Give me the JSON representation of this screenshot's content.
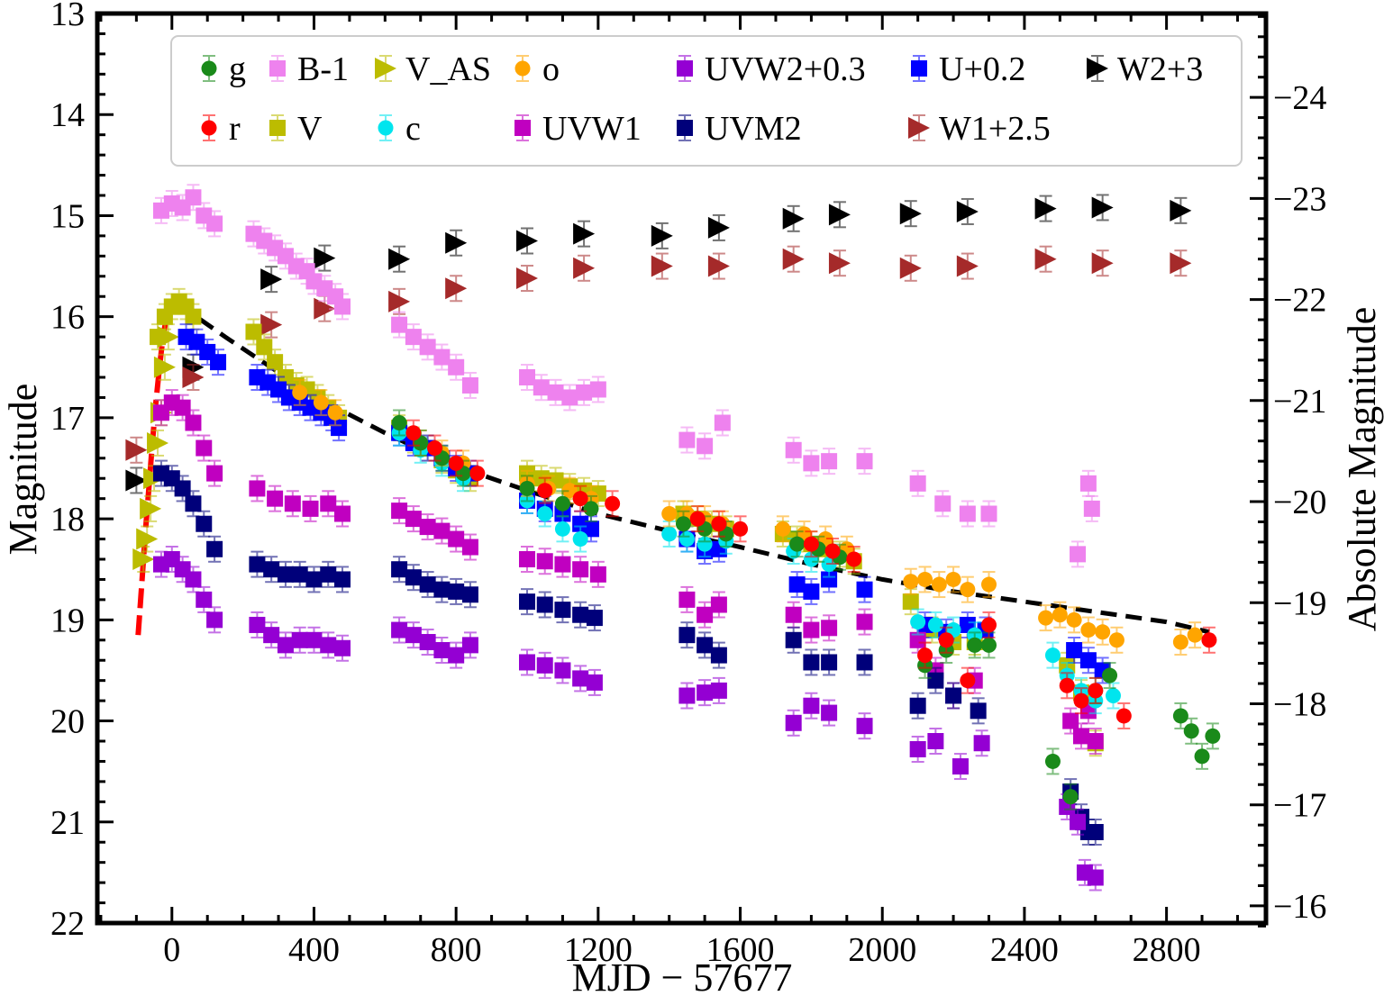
{
  "chart_data": {
    "type": "scatter",
    "xlabel": "MJD − 57677",
    "ylabel": "Magnitude",
    "y2label": "Absolute  Magnitude",
    "xlim": [
      -210,
      3080
    ],
    "ylim": [
      22,
      13
    ],
    "y2lim": [
      -15.83,
      -24.83
    ],
    "y_inverted": true,
    "grid": false,
    "legend_position": "top",
    "xticks": [
      0,
      400,
      800,
      1200,
      1600,
      2000,
      2400,
      2800
    ],
    "xtick_labels": [
      "0",
      "400",
      "800",
      "1200",
      "1600",
      "2000",
      "2400",
      "2800"
    ],
    "yticks": [
      13,
      14,
      15,
      16,
      17,
      18,
      19,
      20,
      21,
      22
    ],
    "ytick_labels": [
      "13",
      "14",
      "15",
      "16",
      "17",
      "18",
      "19",
      "20",
      "21",
      "22"
    ],
    "y2ticks": [
      -24,
      -23,
      -22,
      -21,
      -20,
      -19,
      -18,
      -17,
      -16
    ],
    "y2tick_labels": [
      "−24",
      "−23",
      "−22",
      "−21",
      "−20",
      "−19",
      "−18",
      "−17",
      "−16"
    ],
    "legend": [
      {
        "label": "g",
        "color": "#1a8a1a",
        "marker": "circle"
      },
      {
        "label": "B-1",
        "color": "#ee82ee",
        "marker": "square"
      },
      {
        "label": "V_AS",
        "color": "#bcbc00",
        "marker": "triangle-right"
      },
      {
        "label": "o",
        "color": "#ffa500",
        "marker": "circle"
      },
      {
        "label": "UVW2+0.3",
        "color": "#9400d3",
        "marker": "square"
      },
      {
        "label": "U+0.2",
        "color": "#0000ff",
        "marker": "square"
      },
      {
        "label": "W2+3",
        "color": "#000000",
        "marker": "triangle-right"
      },
      {
        "label": "r",
        "color": "#ff0000",
        "marker": "circle"
      },
      {
        "label": "V",
        "color": "#bcbc00",
        "marker": "square"
      },
      {
        "label": "c",
        "color": "#00e5ee",
        "marker": "circle"
      },
      {
        "label": "UVW1",
        "color": "#c000c0",
        "marker": "square"
      },
      {
        "label": "UVM2",
        "color": "#00007a",
        "marker": "square"
      },
      {
        "label": "W1+2.5",
        "color": "#a52a2a",
        "marker": "triangle-right"
      }
    ],
    "series": [
      {
        "name": "W2+3",
        "color": "#000000",
        "marker": "triangle-right",
        "x": [
          -100,
          60,
          280,
          430,
          640,
          800,
          1000,
          1160,
          1380,
          1540,
          1750,
          1880,
          2080,
          2240,
          2460,
          2620,
          2840
        ],
        "y": [
          17.62,
          16.5,
          15.63,
          15.42,
          15.43,
          15.27,
          15.25,
          15.18,
          15.2,
          15.12,
          15.03,
          14.99,
          14.98,
          14.96,
          14.93,
          14.92,
          14.95
        ]
      },
      {
        "name": "W1+2.5",
        "color": "#a52a2a",
        "marker": "triangle-right",
        "x": [
          -100,
          60,
          280,
          430,
          640,
          800,
          1000,
          1160,
          1380,
          1540,
          1750,
          1880,
          2080,
          2240,
          2460,
          2620,
          2840
        ],
        "y": [
          17.32,
          16.6,
          16.08,
          15.92,
          15.85,
          15.72,
          15.62,
          15.52,
          15.5,
          15.5,
          15.43,
          15.47,
          15.52,
          15.5,
          15.43,
          15.47,
          15.47
        ]
      },
      {
        "name": "B-1",
        "color": "#ee82ee",
        "marker": "square",
        "x": [
          -30,
          0,
          30,
          60,
          90,
          120,
          230,
          260,
          290,
          320,
          350,
          380,
          400,
          430,
          460,
          480,
          640,
          680,
          720,
          760,
          800,
          840,
          1000,
          1040,
          1080,
          1120,
          1160,
          1200,
          1450,
          1500,
          1550,
          1750,
          1800,
          1850,
          1950,
          2100,
          2170,
          2240,
          2300,
          2550,
          2580,
          2590
        ],
        "y": [
          14.95,
          14.88,
          14.92,
          14.82,
          15.0,
          15.08,
          15.18,
          15.25,
          15.32,
          15.4,
          15.5,
          15.55,
          15.65,
          15.72,
          15.8,
          15.9,
          16.08,
          16.2,
          16.3,
          16.4,
          16.5,
          16.68,
          16.6,
          16.7,
          16.75,
          16.8,
          16.75,
          16.72,
          17.22,
          17.28,
          17.05,
          17.32,
          17.45,
          17.43,
          17.43,
          17.65,
          17.85,
          17.95,
          17.95,
          18.35,
          17.65,
          17.9
        ]
      },
      {
        "name": "V_AS",
        "color": "#bcbc00",
        "marker": "triangle-right",
        "x": [
          -80,
          -70,
          -60,
          -50,
          -40,
          -30,
          -20,
          -10
        ],
        "y": [
          18.4,
          18.2,
          17.9,
          17.6,
          17.25,
          16.95,
          16.5,
          16.2
        ]
      },
      {
        "name": "V",
        "color": "#bcbc00",
        "marker": "square",
        "x": [
          -40,
          -20,
          0,
          20,
          40,
          60,
          230,
          260,
          290,
          320,
          350,
          380,
          410,
          440,
          470,
          640,
          680,
          720,
          760,
          800,
          840,
          1000,
          1040,
          1080,
          1120,
          1160,
          1200,
          1440,
          1480,
          1520,
          1560,
          1720,
          1760,
          1800,
          1840,
          1880,
          1920,
          2080,
          2140,
          2200,
          2260,
          2520,
          2560,
          2600
        ],
        "y": [
          16.2,
          16.0,
          15.9,
          15.85,
          15.9,
          16.0,
          16.15,
          16.3,
          16.45,
          16.6,
          16.68,
          16.72,
          16.8,
          16.9,
          17.0,
          17.1,
          17.22,
          17.3,
          17.42,
          17.52,
          17.6,
          17.55,
          17.6,
          17.62,
          17.68,
          17.72,
          17.75,
          17.95,
          18.0,
          18.05,
          18.1,
          18.15,
          18.2,
          18.25,
          18.3,
          18.35,
          18.42,
          18.82,
          19.1,
          19.22,
          19.22,
          19.45,
          19.72,
          20.22
        ]
      },
      {
        "name": "U+0.2",
        "color": "#0000ff",
        "marker": "square",
        "x": [
          40,
          70,
          100,
          130,
          240,
          270,
          300,
          330,
          360,
          390,
          420,
          450,
          470,
          640,
          680,
          720,
          760,
          800,
          840,
          1000,
          1050,
          1100,
          1150,
          1180,
          1450,
          1500,
          1540,
          1760,
          1800,
          1850,
          1950,
          2120,
          2180,
          2240,
          2290,
          2540,
          2580,
          2620
        ],
        "y": [
          16.2,
          16.25,
          16.35,
          16.45,
          16.6,
          16.65,
          16.72,
          16.8,
          16.85,
          16.9,
          16.95,
          17.0,
          17.1,
          17.15,
          17.25,
          17.3,
          17.4,
          17.5,
          17.55,
          17.82,
          17.9,
          17.95,
          18.05,
          18.1,
          18.2,
          18.32,
          18.3,
          18.65,
          18.72,
          18.6,
          18.7,
          19.05,
          19.12,
          19.05,
          19.1,
          19.3,
          19.4,
          19.5
        ]
      },
      {
        "name": "UVW1",
        "color": "#c000c0",
        "marker": "square",
        "x": [
          -30,
          0,
          30,
          60,
          90,
          120,
          240,
          290,
          340,
          390,
          440,
          480,
          640,
          680,
          720,
          760,
          800,
          840,
          1000,
          1050,
          1100,
          1150,
          1200,
          1450,
          1500,
          1540,
          1750,
          1800,
          1850,
          1950,
          2100,
          2150,
          2200,
          2260,
          2530,
          2560,
          2580,
          2600
        ],
        "y": [
          16.95,
          16.85,
          16.9,
          17.05,
          17.3,
          17.55,
          17.7,
          17.8,
          17.85,
          17.9,
          17.85,
          17.95,
          17.92,
          18.0,
          18.08,
          18.12,
          18.2,
          18.28,
          18.4,
          18.42,
          18.45,
          18.5,
          18.55,
          18.8,
          18.95,
          18.85,
          18.95,
          19.1,
          19.08,
          19.02,
          19.2,
          19.5,
          19.75,
          19.6,
          20.0,
          20.15,
          19.9,
          20.2
        ]
      },
      {
        "name": "UVM2",
        "color": "#00007a",
        "marker": "square",
        "x": [
          -30,
          0,
          30,
          60,
          90,
          120,
          240,
          280,
          320,
          360,
          400,
          440,
          480,
          640,
          680,
          720,
          760,
          800,
          840,
          1000,
          1050,
          1100,
          1150,
          1190,
          1450,
          1500,
          1540,
          1750,
          1800,
          1850,
          1950,
          2100,
          2150,
          2200,
          2270,
          2530,
          2560,
          2580,
          2600
        ],
        "y": [
          17.55,
          17.6,
          17.7,
          17.85,
          18.05,
          18.3,
          18.45,
          18.5,
          18.55,
          18.55,
          18.6,
          18.55,
          18.6,
          18.5,
          18.58,
          18.65,
          18.7,
          18.72,
          18.75,
          18.82,
          18.85,
          18.9,
          18.95,
          18.98,
          19.15,
          19.25,
          19.35,
          19.2,
          19.42,
          19.42,
          19.42,
          19.85,
          19.6,
          19.75,
          19.9,
          20.7,
          20.95,
          21.1,
          21.1
        ]
      },
      {
        "name": "UVW2+0.3",
        "color": "#9400d3",
        "marker": "square",
        "x": [
          -30,
          0,
          30,
          60,
          90,
          120,
          240,
          280,
          320,
          360,
          400,
          440,
          480,
          640,
          680,
          720,
          760,
          800,
          840,
          1000,
          1050,
          1100,
          1150,
          1190,
          1450,
          1500,
          1540,
          1750,
          1800,
          1850,
          1950,
          2100,
          2150,
          2220,
          2280,
          2520,
          2550,
          2570,
          2600
        ],
        "y": [
          18.45,
          18.4,
          18.5,
          18.6,
          18.8,
          19.0,
          19.05,
          19.15,
          19.25,
          19.2,
          19.2,
          19.25,
          19.28,
          19.1,
          19.15,
          19.22,
          19.3,
          19.35,
          19.25,
          19.42,
          19.45,
          19.5,
          19.58,
          19.62,
          19.75,
          19.72,
          19.7,
          20.02,
          19.85,
          19.92,
          20.05,
          20.28,
          20.2,
          20.45,
          20.22,
          20.85,
          21.0,
          21.5,
          21.55
        ]
      },
      {
        "name": "c",
        "color": "#00e5ee",
        "marker": "circle",
        "x": [
          640,
          700,
          760,
          820,
          1000,
          1050,
          1100,
          1150,
          1400,
          1450,
          1500,
          1560,
          1750,
          1800,
          1850,
          2100,
          2150,
          2200,
          2260,
          2480,
          2520,
          2560,
          2600,
          2650
        ],
        "y": [
          17.15,
          17.32,
          17.45,
          17.6,
          17.82,
          17.95,
          18.1,
          18.2,
          18.15,
          18.2,
          18.25,
          18.22,
          18.32,
          18.4,
          18.45,
          19.02,
          19.05,
          19.1,
          19.15,
          19.35,
          19.55,
          19.7,
          19.8,
          19.75
        ]
      },
      {
        "name": "o",
        "color": "#ffa500",
        "marker": "circle",
        "x": [
          360,
          420,
          460,
          700,
          760,
          820,
          1000,
          1060,
          1120,
          1180,
          1400,
          1450,
          1500,
          1550,
          1720,
          1780,
          1840,
          1900,
          2080,
          2120,
          2160,
          2200,
          2240,
          2300,
          2460,
          2500,
          2540,
          2580,
          2620,
          2660,
          2840,
          2880
        ],
        "y": [
          16.75,
          16.85,
          16.95,
          17.25,
          17.35,
          17.45,
          17.65,
          17.7,
          17.72,
          17.8,
          17.95,
          17.95,
          18.0,
          18.05,
          18.1,
          18.15,
          18.2,
          18.3,
          18.62,
          18.6,
          18.65,
          18.6,
          18.7,
          18.65,
          18.98,
          18.95,
          19.0,
          19.1,
          19.12,
          19.2,
          19.22,
          19.15
        ]
      },
      {
        "name": "g",
        "color": "#1a8a1a",
        "marker": "circle",
        "x": [
          640,
          700,
          760,
          820,
          1000,
          1100,
          1180,
          1440,
          1500,
          1560,
          1760,
          1820,
          1880,
          2120,
          2180,
          2260,
          2300,
          2480,
          2530,
          2600,
          2640,
          2840,
          2870,
          2900,
          2930
        ],
        "y": [
          17.05,
          17.25,
          17.4,
          17.55,
          17.7,
          17.85,
          17.9,
          18.05,
          18.1,
          18.15,
          18.25,
          18.3,
          18.38,
          19.45,
          19.3,
          19.25,
          19.25,
          20.4,
          20.75,
          19.7,
          19.55,
          19.95,
          20.1,
          20.35,
          20.15
        ]
      },
      {
        "name": "r",
        "color": "#ff0000",
        "marker": "circle",
        "x": [
          680,
          740,
          800,
          860,
          1050,
          1150,
          1240,
          1480,
          1540,
          1600,
          1800,
          1860,
          1920,
          2120,
          2180,
          2240,
          2300,
          2520,
          2560,
          2600,
          2680,
          2920
        ],
        "y": [
          17.15,
          17.3,
          17.45,
          17.55,
          17.72,
          17.8,
          17.85,
          18.0,
          18.05,
          18.1,
          18.25,
          18.32,
          18.4,
          19.35,
          19.2,
          19.6,
          19.05,
          19.65,
          19.8,
          19.7,
          19.95,
          19.2
        ]
      }
    ],
    "fit_lines": [
      {
        "style": "dashed",
        "color": "#000000",
        "x": [
          20,
          150,
          300,
          450,
          600,
          800,
          1000,
          1200,
          1400,
          1600,
          1800,
          2000,
          2200,
          2400,
          2600,
          2800,
          2920
        ],
        "y": [
          15.88,
          16.2,
          16.55,
          16.88,
          17.15,
          17.48,
          17.72,
          17.95,
          18.12,
          18.28,
          18.45,
          18.6,
          18.72,
          18.82,
          18.92,
          19.02,
          19.12
        ]
      },
      {
        "style": "dashed",
        "color": "#ff0000",
        "x": [
          -95,
          -85,
          -75,
          -65,
          -55,
          -45,
          -35,
          -25,
          -15,
          -5,
          5
        ],
        "y": [
          19.15,
          18.65,
          18.15,
          17.7,
          17.25,
          16.85,
          16.5,
          16.2,
          16.0,
          15.9,
          15.87
        ]
      }
    ]
  }
}
